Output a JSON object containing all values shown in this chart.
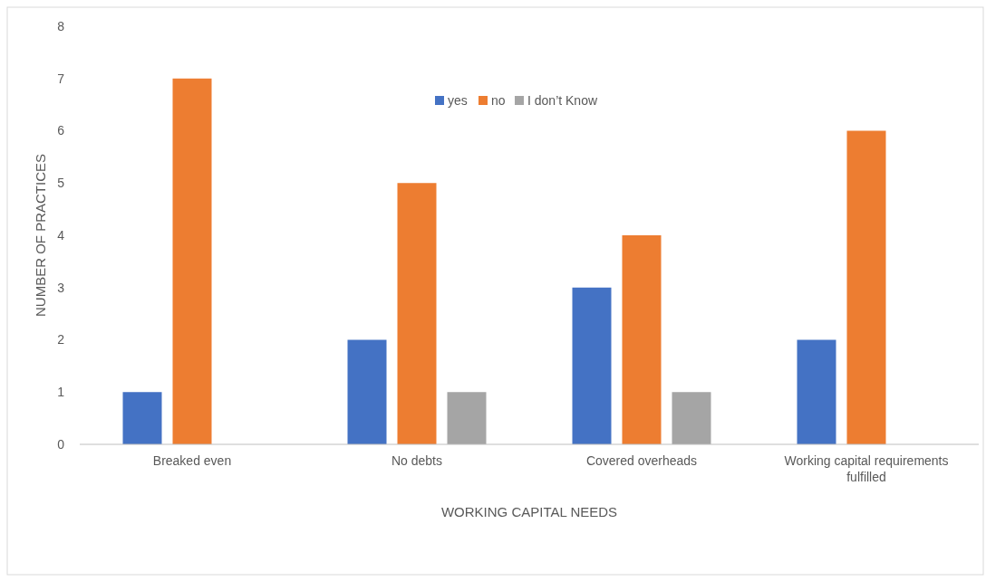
{
  "chart_data": {
    "type": "bar",
    "xlabel": "WORKING CAPITAL NEEDS",
    "ylabel": "NUMBER OF PRACTICES",
    "categories": [
      "Breaked even",
      "No debts",
      "Covered overheads",
      "Working capital requirements fulfilled"
    ],
    "series": [
      {
        "name": "yes",
        "color": "#4472c4",
        "values": [
          1,
          2,
          3,
          2
        ]
      },
      {
        "name": "no",
        "color": "#ed7d31",
        "values": [
          7,
          5,
          4,
          6
        ]
      },
      {
        "name": "I don’t Know",
        "color": "#a5a5a5",
        "values": [
          0,
          1,
          1,
          0
        ]
      }
    ],
    "ylim": [
      0,
      8
    ],
    "yticks": [
      0,
      1,
      2,
      3,
      4,
      5,
      6,
      7,
      8
    ],
    "grid": false,
    "legend": "top"
  }
}
